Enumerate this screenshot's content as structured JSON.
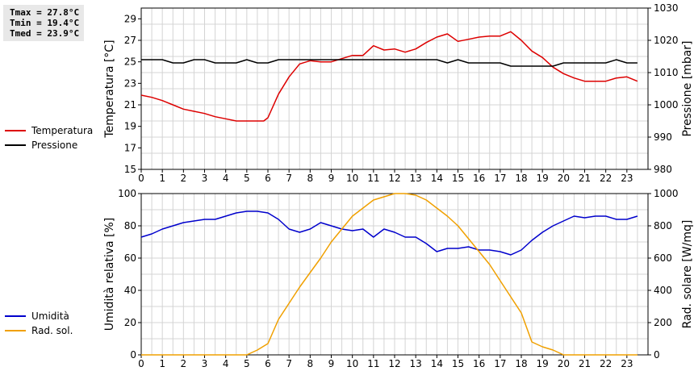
{
  "stats": {
    "tmax": "Tmax = 27.8°C",
    "tmin": "Tmin = 19.4°C",
    "tmed": "Tmed = 23.9°C"
  },
  "colors": {
    "temperature": "#dd0000",
    "pressure": "#000000",
    "humidity": "#0000cc",
    "radiation": "#f0a000",
    "grid": "#d4d4d4"
  },
  "chart_data": [
    {
      "type": "line",
      "xlim": [
        0,
        24
      ],
      "x_ticks": [
        0,
        1,
        2,
        3,
        4,
        5,
        6,
        7,
        8,
        9,
        10,
        11,
        12,
        13,
        14,
        15,
        16,
        17,
        18,
        19,
        20,
        21,
        22,
        23
      ],
      "grid": true,
      "legend_position": "left",
      "y_left": {
        "label": "Temperatura [°C]",
        "lim": [
          15,
          30
        ],
        "ticks": [
          15,
          17,
          19,
          21,
          23,
          25,
          27,
          29
        ]
      },
      "y_right": {
        "label": "Pressione [mbar]",
        "lim": [
          980,
          1030
        ],
        "ticks": [
          980,
          990,
          1000,
          1010,
          1020,
          1030
        ]
      },
      "series": [
        {
          "name": "Temperatura",
          "axis": "left",
          "x": [
            0,
            0.5,
            1,
            1.5,
            2,
            2.5,
            3,
            3.5,
            4,
            4.5,
            5,
            5.5,
            5.8,
            6,
            6.5,
            7,
            7.5,
            8,
            8.5,
            9,
            9.5,
            10,
            10.5,
            11,
            11.5,
            12,
            12.5,
            13,
            13.5,
            14,
            14.5,
            15,
            15.5,
            16,
            16.5,
            17,
            17.5,
            18,
            18.5,
            19,
            19.5,
            20,
            20.5,
            21,
            21.5,
            22,
            22.5,
            23,
            23.5
          ],
          "values": [
            21.9,
            21.7,
            21.4,
            21.0,
            20.6,
            20.4,
            20.2,
            19.9,
            19.7,
            19.5,
            19.5,
            19.5,
            19.5,
            19.8,
            22.0,
            23.6,
            24.8,
            25.1,
            25.0,
            25.0,
            25.3,
            25.6,
            25.6,
            26.5,
            26.1,
            26.2,
            25.9,
            26.2,
            26.8,
            27.3,
            27.6,
            26.9,
            27.1,
            27.3,
            27.4,
            27.4,
            27.8,
            27.0,
            26.0,
            25.4,
            24.5,
            23.9,
            23.5,
            23.2,
            23.2,
            23.2,
            23.5,
            23.6,
            23.2
          ]
        },
        {
          "name": "Pressione",
          "axis": "right",
          "x": [
            0,
            0.5,
            1,
            1.5,
            2,
            2.5,
            3,
            3.5,
            4,
            4.5,
            5,
            5.5,
            6,
            6.5,
            7,
            7.5,
            8,
            8.5,
            9,
            9.5,
            10,
            10.5,
            11,
            11.5,
            12,
            12.5,
            13,
            13.5,
            14,
            14.5,
            15,
            15.5,
            16,
            16.5,
            17,
            17.5,
            18,
            18.5,
            19,
            19.5,
            20,
            20.5,
            21,
            21.5,
            22,
            22.5,
            23,
            23.5
          ],
          "values": [
            1014,
            1014,
            1014,
            1013,
            1013,
            1014,
            1014,
            1013,
            1013,
            1013,
            1014,
            1013,
            1013,
            1014,
            1014,
            1014,
            1014,
            1014,
            1014,
            1014,
            1014,
            1014,
            1014,
            1014,
            1014,
            1014,
            1014,
            1014,
            1014,
            1013,
            1014,
            1013,
            1013,
            1013,
            1013,
            1012,
            1012,
            1012,
            1012,
            1012,
            1013,
            1013,
            1013,
            1013,
            1013,
            1014,
            1013,
            1013
          ]
        }
      ]
    },
    {
      "type": "line",
      "xlim": [
        0,
        24
      ],
      "x_ticks": [
        0,
        1,
        2,
        3,
        4,
        5,
        6,
        7,
        8,
        9,
        10,
        11,
        12,
        13,
        14,
        15,
        16,
        17,
        18,
        19,
        20,
        21,
        22,
        23
      ],
      "grid": true,
      "legend_position": "left",
      "y_left": {
        "label": "Umidità relativa [%]",
        "lim": [
          0,
          100
        ],
        "ticks": [
          0,
          20,
          40,
          60,
          80,
          100
        ]
      },
      "y_right": {
        "label": "Rad. solare [W/mq]",
        "lim": [
          0,
          1000
        ],
        "ticks": [
          0,
          200,
          400,
          600,
          800,
          1000
        ]
      },
      "series": [
        {
          "name": "Umidità",
          "axis": "left",
          "x": [
            0,
            0.5,
            1,
            1.5,
            2,
            2.5,
            3,
            3.5,
            4,
            4.5,
            5,
            5.5,
            6,
            6.5,
            7,
            7.5,
            8,
            8.5,
            9,
            9.5,
            10,
            10.5,
            11,
            11.5,
            12,
            12.5,
            13,
            13.5,
            14,
            14.5,
            15,
            15.5,
            16,
            16.5,
            17,
            17.5,
            18,
            18.5,
            19,
            19.5,
            20,
            20.5,
            21,
            21.5,
            22,
            22.5,
            23,
            23.5
          ],
          "values": [
            73,
            75,
            78,
            80,
            82,
            83,
            84,
            84,
            86,
            88,
            89,
            89,
            88,
            84,
            78,
            76,
            78,
            82,
            80,
            78,
            77,
            78,
            73,
            78,
            76,
            73,
            73,
            69,
            64,
            66,
            66,
            67,
            65,
            65,
            64,
            62,
            65,
            71,
            76,
            80,
            83,
            86,
            85,
            86,
            86,
            84,
            84,
            86
          ]
        },
        {
          "name": "Rad. sol.",
          "axis": "right",
          "x": [
            0,
            1,
            2,
            3,
            4,
            5,
            5.5,
            6,
            6.5,
            7,
            7.5,
            8,
            8.5,
            9,
            9.5,
            10,
            10.5,
            11,
            11.5,
            12,
            12.5,
            13,
            13.5,
            14,
            14.5,
            15,
            15.5,
            16,
            16.5,
            17,
            17.5,
            18,
            18.5,
            19,
            19.5,
            20,
            20.5,
            21,
            21.5,
            22,
            22.5,
            23,
            23.5
          ],
          "values": [
            0,
            0,
            0,
            0,
            0,
            0,
            30,
            70,
            220,
            320,
            420,
            510,
            600,
            700,
            780,
            860,
            910,
            960,
            980,
            1000,
            1000,
            990,
            960,
            910,
            860,
            800,
            720,
            640,
            560,
            460,
            360,
            260,
            80,
            50,
            30,
            0,
            0,
            0,
            0,
            0,
            0,
            0,
            0
          ]
        }
      ]
    }
  ]
}
